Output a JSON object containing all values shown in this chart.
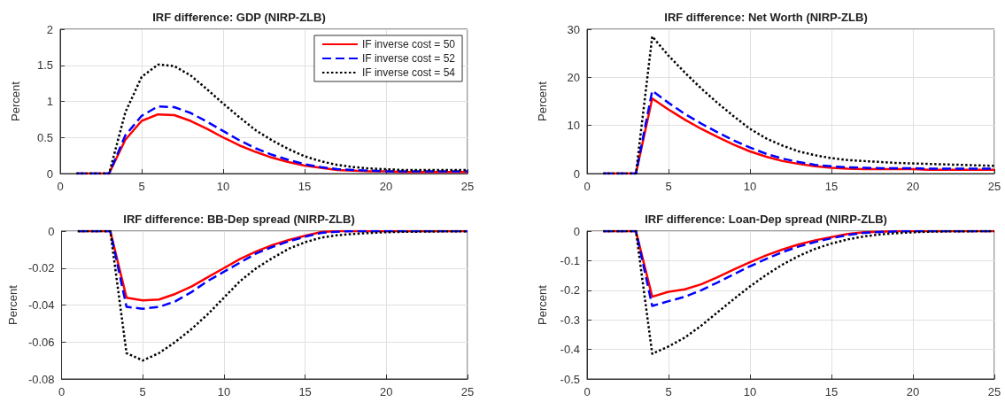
{
  "chart_data": [
    {
      "type": "line",
      "title": "IRF difference: GDP (NIRP-ZLB)",
      "ylabel": "Percent",
      "x": [
        1,
        2,
        3,
        4,
        5,
        6,
        7,
        8,
        9,
        10,
        11,
        12,
        13,
        14,
        15,
        16,
        17,
        18,
        19,
        20,
        21,
        22,
        23,
        24,
        25
      ],
      "xlim": [
        0,
        25
      ],
      "xticks": [
        0,
        5,
        10,
        15,
        20,
        25
      ],
      "ylim": [
        0,
        2
      ],
      "yticks": [
        0,
        0.5,
        1,
        1.5,
        2
      ],
      "grid": true,
      "legend": "top right",
      "marker": "none",
      "series": [
        {
          "name": "IF inverse cost = 50",
          "color": "#ff0000",
          "line_style": "solid",
          "values": [
            0,
            0,
            0,
            0.47,
            0.73,
            0.82,
            0.81,
            0.73,
            0.62,
            0.5,
            0.39,
            0.3,
            0.22,
            0.16,
            0.11,
            0.08,
            0.05,
            0.04,
            0.03,
            0.03,
            0.02,
            0.02,
            0.02,
            0.02,
            0.02
          ]
        },
        {
          "name": "IF inverse cost = 52",
          "color": "#0000ff",
          "line_style": "dashed",
          "values": [
            0,
            0,
            0,
            0.53,
            0.8,
            0.93,
            0.92,
            0.84,
            0.72,
            0.59,
            0.46,
            0.35,
            0.26,
            0.19,
            0.13,
            0.09,
            0.06,
            0.05,
            0.04,
            0.03,
            0.03,
            0.03,
            0.03,
            0.03,
            0.03
          ]
        },
        {
          "name": "IF inverse cost = 54",
          "color": "#000000",
          "line_style": "dotted",
          "values": [
            0,
            0,
            0,
            0.85,
            1.34,
            1.51,
            1.49,
            1.36,
            1.17,
            0.97,
            0.78,
            0.6,
            0.46,
            0.34,
            0.24,
            0.17,
            0.12,
            0.09,
            0.07,
            0.06,
            0.05,
            0.05,
            0.05,
            0.05,
            0.05
          ]
        }
      ]
    },
    {
      "type": "line",
      "title": "IRF difference: Net Worth (NIRP-ZLB)",
      "ylabel": "Percent",
      "x": [
        1,
        2,
        3,
        4,
        5,
        6,
        7,
        8,
        9,
        10,
        11,
        12,
        13,
        14,
        15,
        16,
        17,
        18,
        19,
        20,
        21,
        22,
        23,
        24,
        25
      ],
      "xlim": [
        0,
        25
      ],
      "xticks": [
        0,
        5,
        10,
        15,
        20,
        25
      ],
      "ylim": [
        0,
        30
      ],
      "yticks": [
        0,
        10,
        20,
        30
      ],
      "grid": true,
      "marker": "none",
      "series": [
        {
          "color": "#ff0000",
          "line_style": "solid",
          "values": [
            0,
            0,
            0,
            15.6,
            13.3,
            11.2,
            9.3,
            7.6,
            6.0,
            4.6,
            3.5,
            2.6,
            2.0,
            1.5,
            1.2,
            1.0,
            0.9,
            0.9,
            0.9,
            0.9,
            0.8,
            0.8,
            0.8,
            0.8,
            0.8
          ]
        },
        {
          "color": "#0000ff",
          "line_style": "dashed",
          "values": [
            0,
            0,
            0,
            17.2,
            14.7,
            12.4,
            10.4,
            8.6,
            6.9,
            5.4,
            4.1,
            3.1,
            2.4,
            1.8,
            1.5,
            1.3,
            1.2,
            1.1,
            1.1,
            1.1,
            1.0,
            1.0,
            1.0,
            1.0,
            1.0
          ]
        },
        {
          "color": "#000000",
          "line_style": "dotted",
          "values": [
            0,
            0,
            0,
            28.5,
            24.5,
            21,
            17.7,
            14.7,
            11.9,
            9.3,
            7.3,
            5.8,
            4.6,
            3.8,
            3.2,
            2.8,
            2.6,
            2.4,
            2.2,
            2.1,
            2.0,
            1.9,
            1.8,
            1.7,
            1.6
          ]
        }
      ]
    },
    {
      "type": "line",
      "title": "IRF difference: BB-Dep spread (NIRP-ZLB)",
      "ylabel": "Percent",
      "x": [
        1,
        2,
        3,
        4,
        5,
        6,
        7,
        8,
        9,
        10,
        11,
        12,
        13,
        14,
        15,
        16,
        17,
        18,
        19,
        20,
        21,
        22,
        23,
        24,
        25
      ],
      "xlim": [
        0,
        25
      ],
      "xticks": [
        0,
        5,
        10,
        15,
        20,
        25
      ],
      "ylim": [
        -0.08,
        0
      ],
      "yticks": [
        -0.08,
        -0.06,
        -0.04,
        -0.02,
        0
      ],
      "grid": true,
      "marker": "none",
      "series": [
        {
          "color": "#ff0000",
          "line_style": "solid",
          "values": [
            0,
            0,
            0,
            -0.036,
            -0.0375,
            -0.037,
            -0.034,
            -0.03,
            -0.025,
            -0.02,
            -0.015,
            -0.011,
            -0.0075,
            -0.0048,
            -0.0025,
            -0.0005,
            0,
            0,
            0,
            0,
            0,
            0,
            0,
            0,
            0
          ]
        },
        {
          "color": "#0000ff",
          "line_style": "dashed",
          "values": [
            0,
            0,
            0,
            -0.041,
            -0.042,
            -0.041,
            -0.038,
            -0.033,
            -0.027,
            -0.022,
            -0.017,
            -0.012,
            -0.0085,
            -0.0055,
            -0.003,
            -0.001,
            -0.0003,
            0,
            0,
            0,
            0,
            0,
            0,
            0,
            0
          ]
        },
        {
          "color": "#000000",
          "line_style": "dotted",
          "values": [
            0,
            0,
            0,
            -0.066,
            -0.07,
            -0.066,
            -0.06,
            -0.053,
            -0.045,
            -0.036,
            -0.027,
            -0.02,
            -0.0145,
            -0.0095,
            -0.006,
            -0.0035,
            -0.0022,
            -0.0015,
            -0.001,
            -0.0006,
            -0.0004,
            -0.0003,
            -0.0002,
            -0.0001,
            -0.0001
          ]
        }
      ]
    },
    {
      "type": "line",
      "title": "IRF difference: Loan-Dep spread (NIRP-ZLB)",
      "ylabel": "Percent",
      "x": [
        1,
        2,
        3,
        4,
        5,
        6,
        7,
        8,
        9,
        10,
        11,
        12,
        13,
        14,
        15,
        16,
        17,
        18,
        19,
        20,
        21,
        22,
        23,
        24,
        25
      ],
      "xlim": [
        0,
        25
      ],
      "xticks": [
        0,
        5,
        10,
        15,
        20,
        25
      ],
      "ylim": [
        -0.5,
        0
      ],
      "yticks": [
        -0.5,
        -0.4,
        -0.3,
        -0.2,
        -0.1,
        0
      ],
      "grid": true,
      "marker": "none",
      "series": [
        {
          "color": "#ff0000",
          "line_style": "solid",
          "values": [
            0,
            0,
            0,
            -0.222,
            -0.205,
            -0.197,
            -0.18,
            -0.156,
            -0.13,
            -0.105,
            -0.082,
            -0.062,
            -0.045,
            -0.031,
            -0.02,
            -0.01,
            -0.004,
            -0.002,
            0,
            0,
            0,
            0,
            0,
            0,
            0
          ]
        },
        {
          "color": "#0000ff",
          "line_style": "dashed",
          "values": [
            0,
            0,
            0,
            -0.253,
            -0.237,
            -0.222,
            -0.2,
            -0.174,
            -0.146,
            -0.119,
            -0.094,
            -0.071,
            -0.052,
            -0.037,
            -0.024,
            -0.013,
            -0.006,
            -0.003,
            -0.001,
            0,
            0,
            0,
            0,
            0,
            0
          ]
        },
        {
          "color": "#000000",
          "line_style": "dotted",
          "values": [
            0,
            0,
            0,
            -0.415,
            -0.39,
            -0.36,
            -0.32,
            -0.275,
            -0.23,
            -0.187,
            -0.148,
            -0.113,
            -0.084,
            -0.06,
            -0.042,
            -0.028,
            -0.018,
            -0.011,
            -0.007,
            -0.004,
            -0.002,
            -0.001,
            -0.001,
            0,
            0
          ]
        }
      ]
    }
  ]
}
